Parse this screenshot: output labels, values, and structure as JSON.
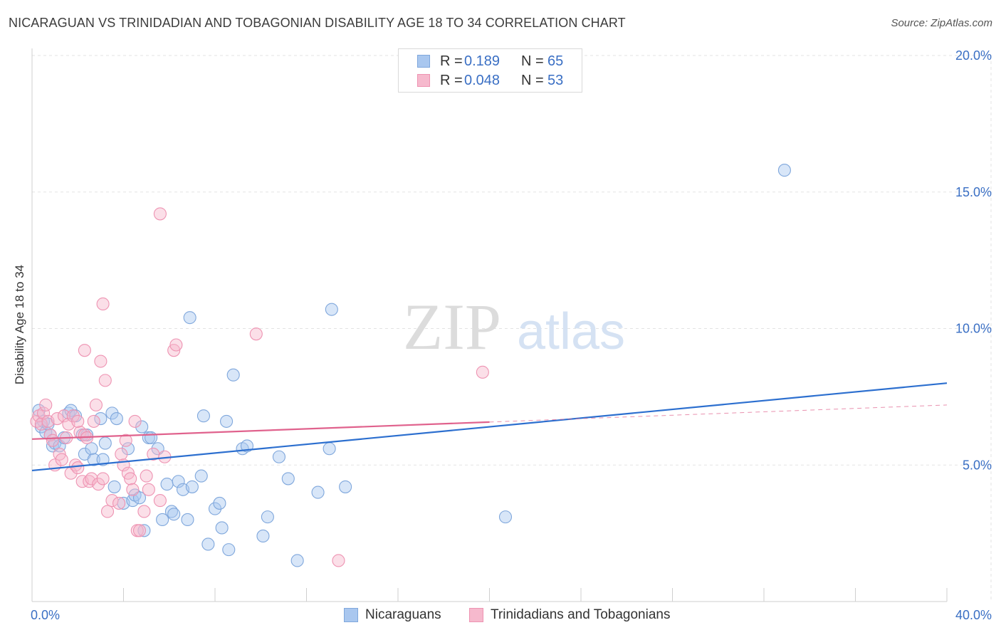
{
  "chart_data": {
    "type": "scatter",
    "title": "NICARAGUAN VS TRINIDADIAN AND TOBAGONIAN DISABILITY AGE 18 TO 34 CORRELATION CHART",
    "source": "Source: ZipAtlas.com",
    "watermark": {
      "zip": "ZIP",
      "atlas": "atlas"
    },
    "xlabel": "",
    "ylabel": "Disability Age 18 to 34",
    "xlim": [
      0,
      40
    ],
    "ylim": [
      0,
      20
    ],
    "x_tick_labels": [
      {
        "value": 0,
        "label": "0.0%"
      },
      {
        "value": 40,
        "label": "40.0%"
      }
    ],
    "x_minor_ticks": [
      4,
      8,
      12,
      16,
      20,
      24,
      28,
      32,
      36,
      40
    ],
    "y_tick_labels": [
      {
        "value": 5,
        "label": "5.0%"
      },
      {
        "value": 10,
        "label": "10.0%"
      },
      {
        "value": 15,
        "label": "15.0%"
      },
      {
        "value": 20,
        "label": "20.0%"
      }
    ],
    "grid": true,
    "legend": {
      "r_label": "R =",
      "n_label": "N ="
    },
    "series": [
      {
        "name": "Nicaraguans",
        "r": "0.189",
        "n": "65",
        "color": "#a9c7ef",
        "stroke": "#7fa7dc",
        "line_color": "#2c6fcf",
        "trend": {
          "x0": 0,
          "y0": 4.8,
          "x1": 40,
          "y1": 8.0,
          "dash_from": null
        },
        "points": [
          [
            0.3,
            7.0
          ],
          [
            0.4,
            6.4
          ],
          [
            0.5,
            6.6
          ],
          [
            0.6,
            6.2
          ],
          [
            0.7,
            6.5
          ],
          [
            0.8,
            6.1
          ],
          [
            0.9,
            5.7
          ],
          [
            1.0,
            5.8
          ],
          [
            1.2,
            5.7
          ],
          [
            1.4,
            6.0
          ],
          [
            1.6,
            6.9
          ],
          [
            1.7,
            7.0
          ],
          [
            1.9,
            6.8
          ],
          [
            2.2,
            6.1
          ],
          [
            2.4,
            6.1
          ],
          [
            2.3,
            5.4
          ],
          [
            2.6,
            5.6
          ],
          [
            2.7,
            5.2
          ],
          [
            3.0,
            6.7
          ],
          [
            3.1,
            5.2
          ],
          [
            3.2,
            5.8
          ],
          [
            3.5,
            6.9
          ],
          [
            3.6,
            4.2
          ],
          [
            3.7,
            6.7
          ],
          [
            4.0,
            3.6
          ],
          [
            4.2,
            5.6
          ],
          [
            4.4,
            3.7
          ],
          [
            4.5,
            3.9
          ],
          [
            4.7,
            3.8
          ],
          [
            4.8,
            6.4
          ],
          [
            4.9,
            2.6
          ],
          [
            5.1,
            6.0
          ],
          [
            5.2,
            6.0
          ],
          [
            5.5,
            5.6
          ],
          [
            5.7,
            3.0
          ],
          [
            5.9,
            4.3
          ],
          [
            6.1,
            3.3
          ],
          [
            6.2,
            3.2
          ],
          [
            6.4,
            4.4
          ],
          [
            6.6,
            4.1
          ],
          [
            6.8,
            3.0
          ],
          [
            6.9,
            10.4
          ],
          [
            7.0,
            4.2
          ],
          [
            7.4,
            4.6
          ],
          [
            7.5,
            6.8
          ],
          [
            7.7,
            2.1
          ],
          [
            8.0,
            3.4
          ],
          [
            8.2,
            3.6
          ],
          [
            8.3,
            2.7
          ],
          [
            8.5,
            6.6
          ],
          [
            8.6,
            1.9
          ],
          [
            8.8,
            8.3
          ],
          [
            9.2,
            5.6
          ],
          [
            9.4,
            5.7
          ],
          [
            10.1,
            2.4
          ],
          [
            10.3,
            3.1
          ],
          [
            10.8,
            5.3
          ],
          [
            11.2,
            4.5
          ],
          [
            11.6,
            1.5
          ],
          [
            12.5,
            4.0
          ],
          [
            13.0,
            5.6
          ],
          [
            13.1,
            10.7
          ],
          [
            13.7,
            4.2
          ],
          [
            20.7,
            3.1
          ],
          [
            32.9,
            15.8
          ]
        ]
      },
      {
        "name": "Trinidadians and Tobagonians",
        "r": "0.048",
        "n": "53",
        "color": "#f6b9cd",
        "stroke": "#ee93b2",
        "line_color": "#e0628d",
        "trend": {
          "x0": 0,
          "y0": 5.95,
          "x1": 40,
          "y1": 7.2,
          "dash_from": 20
        },
        "points": [
          [
            0.2,
            6.6
          ],
          [
            0.3,
            6.8
          ],
          [
            0.4,
            6.5
          ],
          [
            0.5,
            6.9
          ],
          [
            0.6,
            7.2
          ],
          [
            0.7,
            6.6
          ],
          [
            0.8,
            6.1
          ],
          [
            0.9,
            5.9
          ],
          [
            1.0,
            5.0
          ],
          [
            1.1,
            6.7
          ],
          [
            1.2,
            5.4
          ],
          [
            1.3,
            5.2
          ],
          [
            1.4,
            6.8
          ],
          [
            1.5,
            6.0
          ],
          [
            1.6,
            6.5
          ],
          [
            1.7,
            4.7
          ],
          [
            1.8,
            6.8
          ],
          [
            1.9,
            5.0
          ],
          [
            2.0,
            4.9
          ],
          [
            2.1,
            6.2
          ],
          [
            2.2,
            4.4
          ],
          [
            2.3,
            6.1
          ],
          [
            2.4,
            6.0
          ],
          [
            2.5,
            4.4
          ],
          [
            2.6,
            4.5
          ],
          [
            2.7,
            6.6
          ],
          [
            2.8,
            7.2
          ],
          [
            2.9,
            4.3
          ],
          [
            3.0,
            8.8
          ],
          [
            3.1,
            4.5
          ],
          [
            3.2,
            8.1
          ],
          [
            3.3,
            3.3
          ],
          [
            3.5,
            3.7
          ],
          [
            3.8,
            3.6
          ],
          [
            3.9,
            5.4
          ],
          [
            4.0,
            5.0
          ],
          [
            4.1,
            5.9
          ],
          [
            4.2,
            4.7
          ],
          [
            4.3,
            4.5
          ],
          [
            4.4,
            4.1
          ],
          [
            4.5,
            6.6
          ],
          [
            4.6,
            2.6
          ],
          [
            4.7,
            2.6
          ],
          [
            4.9,
            3.3
          ],
          [
            5.0,
            4.6
          ],
          [
            5.1,
            4.1
          ],
          [
            5.3,
            5.4
          ],
          [
            5.6,
            3.7
          ],
          [
            5.6,
            14.2
          ],
          [
            6.2,
            9.2
          ],
          [
            6.3,
            9.4
          ],
          [
            3.1,
            10.9
          ],
          [
            9.8,
            9.8
          ]
        ],
        "extra_points": [
          [
            2.3,
            9.2
          ],
          [
            13.4,
            1.5
          ],
          [
            19.7,
            8.4
          ],
          [
            5.8,
            5.3
          ],
          [
            2.0,
            6.6
          ]
        ]
      }
    ]
  }
}
